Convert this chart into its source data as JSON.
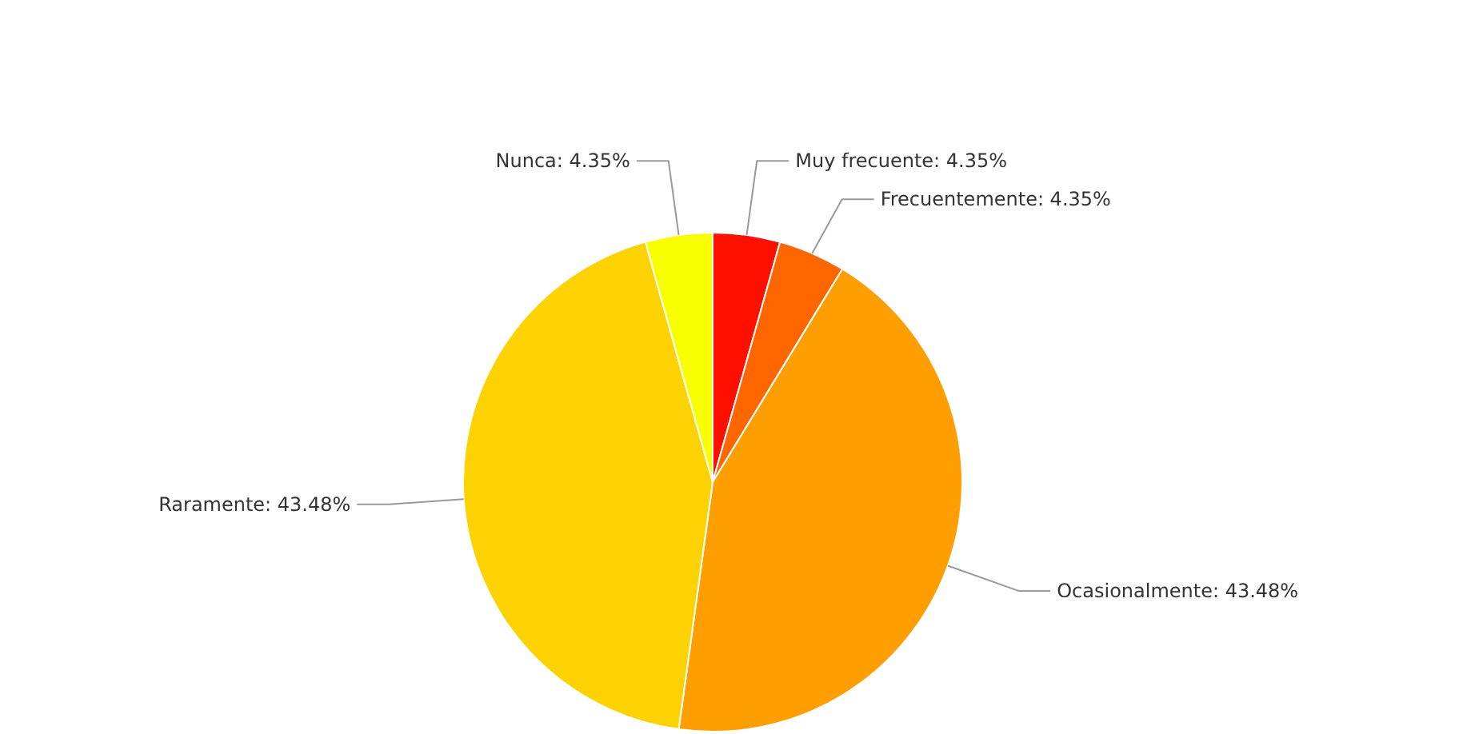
{
  "chart_data": {
    "type": "pie",
    "categories": [
      "Muy frecuente",
      "Frecuentemente",
      "Ocasionalmente",
      "Raramente",
      "Nunca"
    ],
    "values": [
      4.35,
      4.35,
      43.48,
      43.48,
      4.35
    ],
    "value_labels": [
      "4.35%",
      "4.35%",
      "43.48%",
      "43.48%",
      "4.35%"
    ],
    "colors": [
      "#ff0f00",
      "#ff6600",
      "#ff9e01",
      "#fcd202",
      "#f8ff01"
    ]
  }
}
